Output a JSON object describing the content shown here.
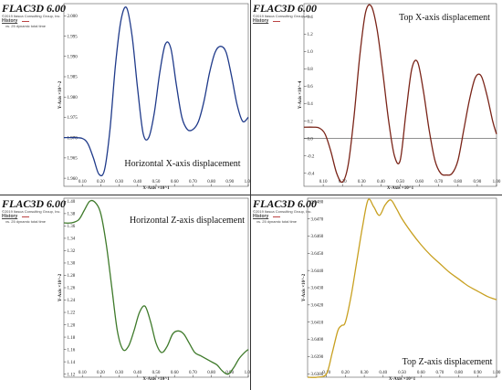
{
  "panels": [
    {
      "brand": "FLAC3D 6.00",
      "copyright": "©2019 Itasca Consulting Group, Inc.",
      "history_label": "History",
      "history_sub": "vs. 25 dynamic total time",
      "annotation": "Horizontal X-axis displacement",
      "color": "#1f3a8a"
    },
    {
      "brand": "FLAC3D 6.00",
      "copyright": "©2019 Itasca Consulting Group, Inc.",
      "history_label": "History",
      "history_sub": "",
      "annotation": "Top X-axis displacement",
      "color": "#7a2418"
    },
    {
      "brand": "FLAC3D 6.00",
      "copyright": "©2019 Itasca Consulting Group, Inc.",
      "history_label": "History",
      "history_sub": "vs. 25 dynamic total time",
      "annotation": "Horizontal Z-axis displacement",
      "color": "#3e7a2a"
    },
    {
      "brand": "FLAC3D 6.00",
      "copyright": "©2019 Itasca Consulting Group, Inc.",
      "history_label": "History",
      "history_sub": "vs. 25 dynamic total time",
      "annotation": "Top Z-axis displacement",
      "color": "#c8a020"
    }
  ],
  "chart_data": [
    {
      "type": "line",
      "xlabel": "X-Axis ×10^1",
      "ylabel": "Y-Axis ×10^-2",
      "xlim": [
        0.0,
        1.0
      ],
      "ylim": [
        1.958,
        2.003
      ],
      "xticks": [
        "0.10",
        "0.20",
        "0.30",
        "0.40",
        "0.50",
        "0.60",
        "0.70",
        "0.80",
        "0.90",
        "1.00"
      ],
      "yticks": [
        "1.960",
        "1.965",
        "1.970",
        "1.975",
        "1.980",
        "1.985",
        "1.990",
        "1.995",
        "2.000"
      ],
      "ytick_values": [
        1.96,
        1.965,
        1.97,
        1.975,
        1.98,
        1.985,
        1.99,
        1.995,
        2.0
      ],
      "series": [
        {
          "x": [
            0.0,
            0.05,
            0.1,
            0.13,
            0.16,
            0.19,
            0.22,
            0.25,
            0.28,
            0.31,
            0.34,
            0.37,
            0.4,
            0.43,
            0.46,
            0.49,
            0.52,
            0.55,
            0.58,
            0.61,
            0.64,
            0.67,
            0.7,
            0.73,
            0.76,
            0.79,
            0.82,
            0.85,
            0.88,
            0.91,
            0.94,
            0.97,
            1.0
          ],
          "y": [
            1.97,
            1.97,
            1.9698,
            1.9685,
            1.965,
            1.961,
            1.962,
            1.972,
            1.988,
            1.999,
            2.002,
            1.995,
            1.982,
            1.971,
            1.97,
            1.976,
            1.986,
            1.993,
            1.992,
            1.983,
            1.975,
            1.972,
            1.972,
            1.974,
            1.979,
            1.986,
            1.991,
            1.9925,
            1.991,
            1.985,
            1.978,
            1.974,
            1.975
          ]
        }
      ]
    },
    {
      "type": "line",
      "xlabel": "X-Axis ×10^1",
      "ylabel": "Y-Axis ×10^-4",
      "xlim": [
        0.0,
        1.0
      ],
      "ylim": [
        -0.55,
        1.55
      ],
      "xticks": [
        "0.10",
        "0.20",
        "0.30",
        "0.40",
        "0.50",
        "0.60",
        "0.70",
        "0.80",
        "0.90",
        "1.00"
      ],
      "yticks": [
        "-0.4",
        "-0.2",
        "0.0",
        "0.2",
        "0.4",
        "0.6",
        "0.8",
        "1.0",
        "1.2",
        "1.4"
      ],
      "ytick_values": [
        -0.4,
        -0.2,
        0.0,
        0.2,
        0.4,
        0.6,
        0.8,
        1.0,
        1.2,
        1.4
      ],
      "zero_line": true,
      "series": [
        {
          "x": [
            0.0,
            0.05,
            0.08,
            0.11,
            0.14,
            0.17,
            0.2,
            0.23,
            0.26,
            0.29,
            0.32,
            0.35,
            0.38,
            0.41,
            0.44,
            0.47,
            0.5,
            0.53,
            0.56,
            0.59,
            0.62,
            0.65,
            0.68,
            0.71,
            0.74,
            0.77,
            0.8,
            0.83,
            0.86,
            0.89,
            0.92,
            0.95,
            0.98,
            1.0
          ],
          "y": [
            0.13,
            0.13,
            0.12,
            0.05,
            -0.15,
            -0.4,
            -0.5,
            -0.3,
            0.25,
            0.95,
            1.45,
            1.52,
            1.25,
            0.75,
            0.2,
            -0.2,
            -0.25,
            0.3,
            0.8,
            0.88,
            0.55,
            0.1,
            -0.25,
            -0.4,
            -0.42,
            -0.4,
            -0.25,
            0.1,
            0.45,
            0.7,
            0.72,
            0.5,
            0.2,
            0.05
          ]
        }
      ]
    },
    {
      "type": "line",
      "xlabel": "X-Axis ×10^1",
      "ylabel": "Y-Axis ×10^-2",
      "xlim": [
        0.0,
        1.0
      ],
      "ylim": [
        1.115,
        1.405
      ],
      "xticks": [
        "0.10",
        "0.20",
        "0.30",
        "0.40",
        "0.50",
        "0.60",
        "0.70",
        "0.80",
        "0.90",
        "1.00"
      ],
      "yticks": [
        "1.12",
        "1.14",
        "1.16",
        "1.18",
        "1.20",
        "1.22",
        "1.24",
        "1.26",
        "1.28",
        "1.30",
        "1.32",
        "1.34",
        "1.36",
        "1.38",
        "1.40"
      ],
      "ytick_values": [
        1.12,
        1.14,
        1.16,
        1.18,
        1.2,
        1.22,
        1.24,
        1.26,
        1.28,
        1.3,
        1.32,
        1.34,
        1.36,
        1.38,
        1.4
      ],
      "series": [
        {
          "x": [
            0.0,
            0.04,
            0.08,
            0.11,
            0.14,
            0.17,
            0.2,
            0.23,
            0.26,
            0.29,
            0.32,
            0.35,
            0.38,
            0.41,
            0.44,
            0.47,
            0.5,
            0.53,
            0.56,
            0.59,
            0.62,
            0.65,
            0.68,
            0.71,
            0.74,
            0.77,
            0.8,
            0.83,
            0.86,
            0.89,
            0.92,
            0.95,
            0.98,
            1.0
          ],
          "y": [
            1.365,
            1.365,
            1.37,
            1.385,
            1.4,
            1.398,
            1.38,
            1.33,
            1.26,
            1.19,
            1.16,
            1.165,
            1.19,
            1.22,
            1.23,
            1.205,
            1.17,
            1.155,
            1.165,
            1.185,
            1.19,
            1.185,
            1.17,
            1.155,
            1.15,
            1.145,
            1.14,
            1.135,
            1.125,
            1.12,
            1.13,
            1.145,
            1.155,
            1.16
          ]
        }
      ]
    },
    {
      "type": "line",
      "xlabel": "X-Axis ×10^1",
      "ylabel": "Y-Axis ×10^-2",
      "xlim": [
        0.0,
        1.0
      ],
      "ylim": [
        3.6378,
        3.6482
      ],
      "xticks": [
        "0.10",
        "0.20",
        "0.30",
        "0.40",
        "0.50",
        "0.60",
        "0.70",
        "0.80",
        "0.90",
        "1.00"
      ],
      "yticks": [
        "3.6380",
        "3.6390",
        "3.6400",
        "3.6410",
        "3.6420",
        "3.6430",
        "3.6440",
        "3.6450",
        "3.6460",
        "3.6470",
        "3.6480"
      ],
      "ytick_values": [
        3.638,
        3.639,
        3.64,
        3.641,
        3.642,
        3.643,
        3.644,
        3.645,
        3.646,
        3.647,
        3.648
      ],
      "series": [
        {
          "x": [
            0.0,
            0.05,
            0.1,
            0.13,
            0.16,
            0.18,
            0.2,
            0.23,
            0.26,
            0.29,
            0.32,
            0.35,
            0.38,
            0.41,
            0.44,
            0.47,
            0.5,
            0.55,
            0.6,
            0.65,
            0.7,
            0.75,
            0.8,
            0.85,
            0.9,
            0.95,
            1.0
          ],
          "y": [
            3.6378,
            3.6378,
            3.638,
            3.6392,
            3.6405,
            3.6408,
            3.641,
            3.6425,
            3.6445,
            3.6465,
            3.6481,
            3.6477,
            3.6472,
            3.6478,
            3.6481,
            3.6476,
            3.647,
            3.6462,
            3.6455,
            3.6449,
            3.6444,
            3.6439,
            3.6435,
            3.6431,
            3.6428,
            3.6425,
            3.6423
          ]
        }
      ]
    }
  ]
}
